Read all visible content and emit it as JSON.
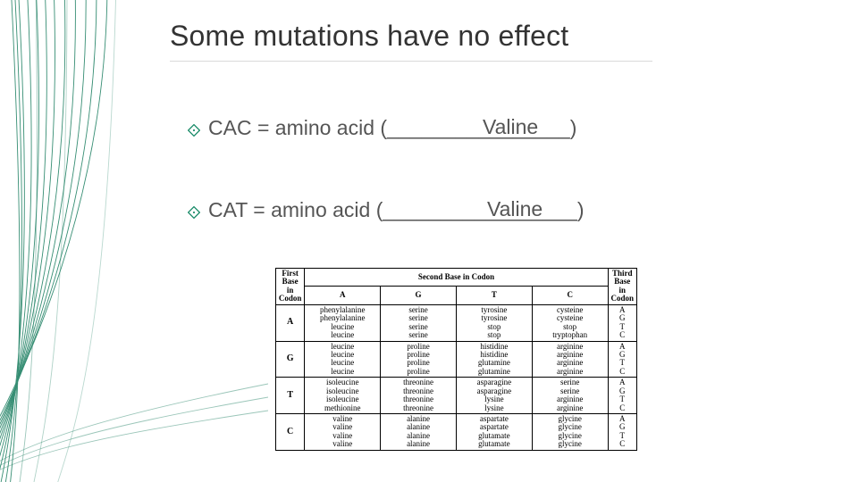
{
  "title": "Some mutations have no effect",
  "bullet_color": "#178a67",
  "lines": [
    {
      "text": "CAC = amino acid (________________)",
      "fill": "Valine"
    },
    {
      "text": "CAT = amino acid (_________________)",
      "fill": "Valine"
    }
  ],
  "codon_table": {
    "header_first": "First Base in Codon",
    "header_second": "Second Base in Codon",
    "header_third": "Third Base in Codon",
    "second_bases": [
      "A",
      "G",
      "T",
      "C"
    ],
    "rows": [
      {
        "first": "A",
        "cells": [
          [
            "phenylalanine",
            "phenylalanine",
            "leucine",
            "leucine"
          ],
          [
            "serine",
            "serine",
            "serine",
            "serine"
          ],
          [
            "tyrosine",
            "tyrosine",
            "stop",
            "stop"
          ],
          [
            "cysteine",
            "cysteine",
            "stop",
            "tryptophan"
          ]
        ],
        "third": [
          "A",
          "G",
          "T",
          "C"
        ]
      },
      {
        "first": "G",
        "cells": [
          [
            "leucine",
            "leucine",
            "leucine",
            "leucine"
          ],
          [
            "proline",
            "proline",
            "proline",
            "proline"
          ],
          [
            "histidine",
            "histidine",
            "glutamine",
            "glutamine"
          ],
          [
            "arginine",
            "arginine",
            "arginine",
            "arginine"
          ]
        ],
        "third": [
          "A",
          "G",
          "T",
          "C"
        ]
      },
      {
        "first": "T",
        "cells": [
          [
            "isoleucine",
            "isoleucine",
            "isoleucine",
            "methionine"
          ],
          [
            "threonine",
            "threonine",
            "threonine",
            "threonine"
          ],
          [
            "asparagine",
            "asparagine",
            "lysine",
            "lysine"
          ],
          [
            "serine",
            "serine",
            "arginine",
            "arginine"
          ]
        ],
        "third": [
          "A",
          "G",
          "T",
          "C"
        ]
      },
      {
        "first": "C",
        "cells": [
          [
            "valine",
            "valine",
            "valine",
            "valine"
          ],
          [
            "alanine",
            "alanine",
            "alanine",
            "alanine"
          ],
          [
            "aspartate",
            "aspartate",
            "glutamate",
            "glutamate"
          ],
          [
            "glycine",
            "glycine",
            "glycine",
            "glycine"
          ]
        ],
        "third": [
          "A",
          "G",
          "T",
          "C"
        ]
      }
    ]
  },
  "colors": {
    "title": "#333333",
    "body_text": "#555555",
    "rule": "#d9d9d9",
    "deco_stroke": "#137a5b",
    "background": "#ffffff"
  },
  "typography": {
    "title_size": 32,
    "body_size": 23,
    "table_size": 9,
    "table_font": "Times New Roman"
  }
}
